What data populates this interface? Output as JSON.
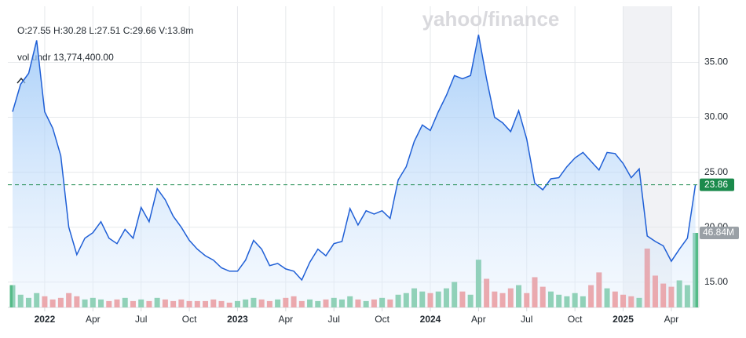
{
  "chart_data": {
    "type": "line",
    "watermark": "yahoo/finance",
    "ohlc_text": "O:27.55 H:30.28 L:27.51 C:29.66 V:13.8m",
    "volume_text": "vol undr 13,774,400.00",
    "categories": [
      null,
      null,
      null,
      null,
      "2022",
      null,
      null,
      null,
      null,
      null,
      "Apr",
      null,
      null,
      null,
      null,
      null,
      "Jul",
      null,
      null,
      null,
      null,
      null,
      "Oct",
      null,
      null,
      null,
      null,
      null,
      "2023",
      null,
      null,
      null,
      null,
      null,
      "Apr",
      null,
      null,
      null,
      null,
      null,
      "Jul",
      null,
      null,
      null,
      null,
      null,
      "Oct",
      null,
      null,
      null,
      null,
      null,
      "2024",
      null,
      null,
      null,
      null,
      null,
      "Apr",
      null,
      null,
      null,
      null,
      null,
      "Jul",
      null,
      null,
      null,
      null,
      null,
      "Oct",
      null,
      null,
      null,
      null,
      null,
      "2025",
      null,
      null,
      null,
      null,
      null,
      "Apr",
      null,
      null,
      null
    ],
    "series": [
      {
        "color": "#1f5fd6",
        "values": [
          30.5,
          33,
          34,
          37,
          30.5,
          29,
          26.5,
          20,
          17.5,
          19,
          19.5,
          20.5,
          19,
          18.5,
          19.8,
          19,
          21.8,
          20.5,
          23.5,
          22.5,
          21,
          20,
          18.8,
          18,
          17.4,
          17,
          16.3,
          16,
          16,
          17,
          18.8,
          18,
          16.5,
          16.7,
          16.2,
          16,
          15.2,
          16.8,
          18,
          17.4,
          18.5,
          18.7,
          21.7,
          20.2,
          21.5,
          21.2,
          21.5,
          20.8,
          24.3,
          25.5,
          27.8,
          29.3,
          28.8,
          30.5,
          32,
          33.8,
          33.5,
          33.8,
          37.5,
          33.5,
          30,
          29.5,
          28.7,
          30.6,
          28,
          24,
          23.4,
          24.4,
          24.5,
          25.5,
          26.3,
          26.8,
          26,
          25.2,
          26.8,
          26.7,
          25.8,
          24.5,
          25.3,
          19.2,
          18.7,
          18.3,
          16.9,
          18,
          19,
          23.86
        ]
      }
    ],
    "current_value": 23.86,
    "current_color": "#1b8a4c",
    "ylim": [
      12.7,
      40.1
    ],
    "yticks": [
      {
        "value": 15,
        "label": "15.00"
      },
      {
        "value": 20,
        "label": "20.00"
      },
      {
        "value": 25,
        "label": "25.00"
      },
      {
        "value": 30,
        "label": "30.00"
      },
      {
        "value": 35,
        "label": "35.00"
      }
    ],
    "grid": true,
    "volume": {
      "ylim": [
        0,
        189.3
      ],
      "current_label": "46.84M",
      "values": [
        14,
        8,
        6,
        9,
        7,
        5,
        6,
        9,
        7,
        5,
        6,
        5,
        4,
        5,
        6,
        4,
        5,
        4,
        6,
        5,
        4,
        5,
        4,
        4,
        4,
        5,
        4,
        3,
        4,
        5,
        6,
        5,
        4,
        5,
        6,
        7,
        4,
        5,
        4,
        5,
        6,
        5,
        7,
        5,
        4,
        5,
        6,
        5,
        8,
        9,
        12,
        10,
        9,
        10,
        12,
        16,
        10,
        8,
        30,
        18,
        10,
        9,
        12,
        14,
        9,
        19,
        13,
        10,
        8,
        7,
        9,
        7,
        14,
        22,
        12,
        10,
        8,
        7,
        6,
        37,
        20,
        15,
        13,
        17,
        14,
        46.84
      ],
      "colors": [
        "#5b8",
        "#5b8",
        "#5b8",
        "#5b8",
        "#e77",
        "#e77",
        "#e77",
        "#e77",
        "#e77",
        "#5b8",
        "#5b8",
        "#5b8",
        "#e77",
        "#e77",
        "#5b8",
        "#e77",
        "#5b8",
        "#e77",
        "#5b8",
        "#e77",
        "#e77",
        "#e77",
        "#e77",
        "#e77",
        "#e77",
        "#e77",
        "#e77",
        "#e77",
        "#5b8",
        "#5b8",
        "#5b8",
        "#e77",
        "#e77",
        "#5b8",
        "#e77",
        "#e77",
        "#e77",
        "#5b8",
        "#5b8",
        "#e77",
        "#5b8",
        "#5b8",
        "#5b8",
        "#e77",
        "#5b8",
        "#e77",
        "#5b8",
        "#e77",
        "#5b8",
        "#5b8",
        "#5b8",
        "#5b8",
        "#e77",
        "#5b8",
        "#5b8",
        "#5b8",
        "#e77",
        "#5b8",
        "#5b8",
        "#e77",
        "#e77",
        "#e77",
        "#e77",
        "#5b8",
        "#e77",
        "#e77",
        "#e77",
        "#5b8",
        "#5b8",
        "#5b8",
        "#5b8",
        "#5b8",
        "#e77",
        "#e77",
        "#5b8",
        "#e77",
        "#e77",
        "#e77",
        "#5b8",
        "#e77",
        "#e77",
        "#e77",
        "#e77",
        "#5b8",
        "#5b8",
        "#5b8"
      ]
    }
  }
}
